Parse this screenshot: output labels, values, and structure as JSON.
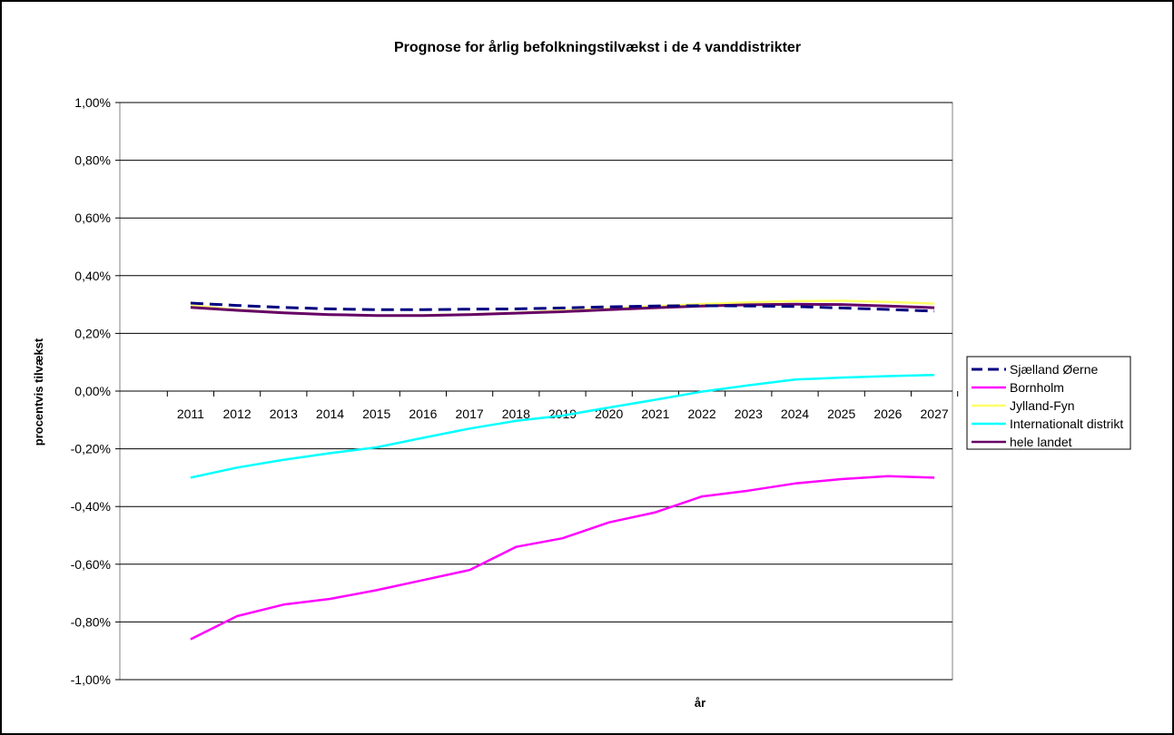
{
  "chart_data": {
    "type": "line",
    "title": "Prognose for årlig befolkningstilvækst i de 4 vanddistrikter",
    "xlabel": "år",
    "ylabel": "procentvis tilvækst",
    "ylim": [
      -1.0,
      1.0
    ],
    "y_ticks": [
      1.0,
      0.8,
      0.6,
      0.4,
      0.2,
      0.0,
      -0.2,
      -0.4,
      -0.6,
      -0.8,
      -1.0
    ],
    "y_tick_labels": [
      "1,00%",
      "0,80%",
      "0,60%",
      "0,40%",
      "0,20%",
      "0,00%",
      "-0,20%",
      "-0,40%",
      "-0,60%",
      "-0,80%",
      "-1,00%"
    ],
    "categories": [
      "2011",
      "2012",
      "2013",
      "2014",
      "2015",
      "2016",
      "2017",
      "2018",
      "2019",
      "2020",
      "2021",
      "2022",
      "2023",
      "2024",
      "2025",
      "2026",
      "2027"
    ],
    "grid": true,
    "legend_position": "right",
    "series": [
      {
        "name": "Sjælland Øerne",
        "color": "#000080",
        "dash": true,
        "values": [
          0.305,
          0.297,
          0.29,
          0.285,
          0.282,
          0.282,
          0.284,
          0.285,
          0.288,
          0.292,
          0.295,
          0.296,
          0.295,
          0.293,
          0.288,
          0.283,
          0.277
        ]
      },
      {
        "name": "Bornholm",
        "color": "#FF00FF",
        "dash": false,
        "values": [
          -0.86,
          -0.78,
          -0.74,
          -0.72,
          -0.69,
          -0.655,
          -0.62,
          -0.54,
          -0.51,
          -0.455,
          -0.42,
          -0.365,
          -0.345,
          -0.32,
          -0.305,
          -0.295,
          -0.3
        ]
      },
      {
        "name": "Jylland-Fyn",
        "color": "#FFFF66",
        "dash": false,
        "values": [
          0.297,
          0.282,
          0.272,
          0.265,
          0.262,
          0.263,
          0.266,
          0.271,
          0.279,
          0.286,
          0.294,
          0.302,
          0.308,
          0.312,
          0.313,
          0.309,
          0.303
        ]
      },
      {
        "name": "Internationalt distrikt",
        "color": "#00FFFF",
        "dash": false,
        "values": [
          -0.3,
          -0.265,
          -0.238,
          -0.215,
          -0.195,
          -0.162,
          -0.13,
          -0.103,
          -0.085,
          -0.057,
          -0.03,
          -0.002,
          0.02,
          0.04,
          0.047,
          0.052,
          0.056
        ]
      },
      {
        "name": "hele landet",
        "color": "#660066",
        "dash": false,
        "values": [
          0.29,
          0.28,
          0.271,
          0.265,
          0.262,
          0.262,
          0.265,
          0.27,
          0.275,
          0.282,
          0.289,
          0.295,
          0.299,
          0.301,
          0.3,
          0.295,
          0.289
        ]
      }
    ]
  }
}
